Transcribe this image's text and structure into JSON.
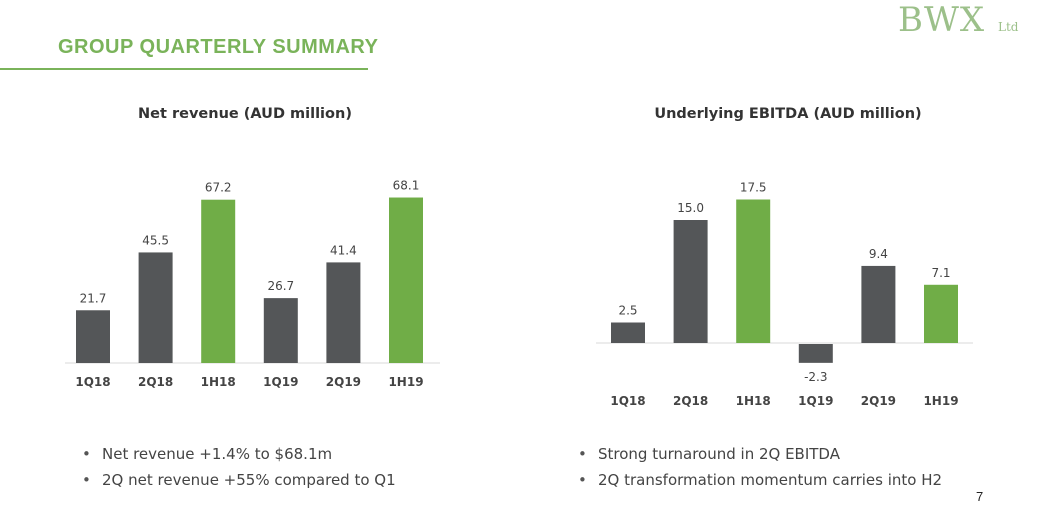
{
  "header": {
    "title": "GROUP QUARTERLY SUMMARY"
  },
  "logo": {
    "main": "BWX",
    "sub": "Ltd"
  },
  "colors": {
    "accent": "#7ab35a",
    "bar_dark": "#545658",
    "bar_green": "#70ad47"
  },
  "chart_data": [
    {
      "type": "bar",
      "title": "Net revenue (AUD million)",
      "categories": [
        "1Q18",
        "2Q18",
        "1H18",
        "1Q19",
        "2Q19",
        "1H19"
      ],
      "values": [
        21.7,
        45.5,
        67.2,
        26.7,
        41.4,
        68.1
      ],
      "labels": [
        "21.7",
        "45.5",
        "67.2",
        "26.7",
        "41.4",
        "68.1"
      ],
      "highlight": [
        false,
        false,
        true,
        false,
        false,
        true
      ],
      "ylim": [
        0,
        70
      ],
      "grid": false,
      "xlabel": "",
      "ylabel": ""
    },
    {
      "type": "bar",
      "title": "Underlying EBITDA (AUD million)",
      "categories": [
        "1Q18",
        "2Q18",
        "1H18",
        "1Q19",
        "2Q19",
        "1H19"
      ],
      "values": [
        2.5,
        15.0,
        17.5,
        -2.3,
        9.4,
        7.1
      ],
      "labels": [
        "2.5",
        "15.0",
        "17.5",
        "-2.3",
        "9.4",
        "7.1"
      ],
      "highlight": [
        false,
        false,
        true,
        false,
        false,
        true
      ],
      "ylim": [
        -3,
        18
      ],
      "grid": false,
      "xlabel": "",
      "ylabel": ""
    }
  ],
  "bullets_left": [
    "Net revenue +1.4% to $68.1m",
    "2Q net revenue +55% compared to Q1"
  ],
  "bullets_right": [
    "Strong turnaround in 2Q EBITDA",
    "2Q transformation momentum carries into H2"
  ],
  "page_number": "7"
}
